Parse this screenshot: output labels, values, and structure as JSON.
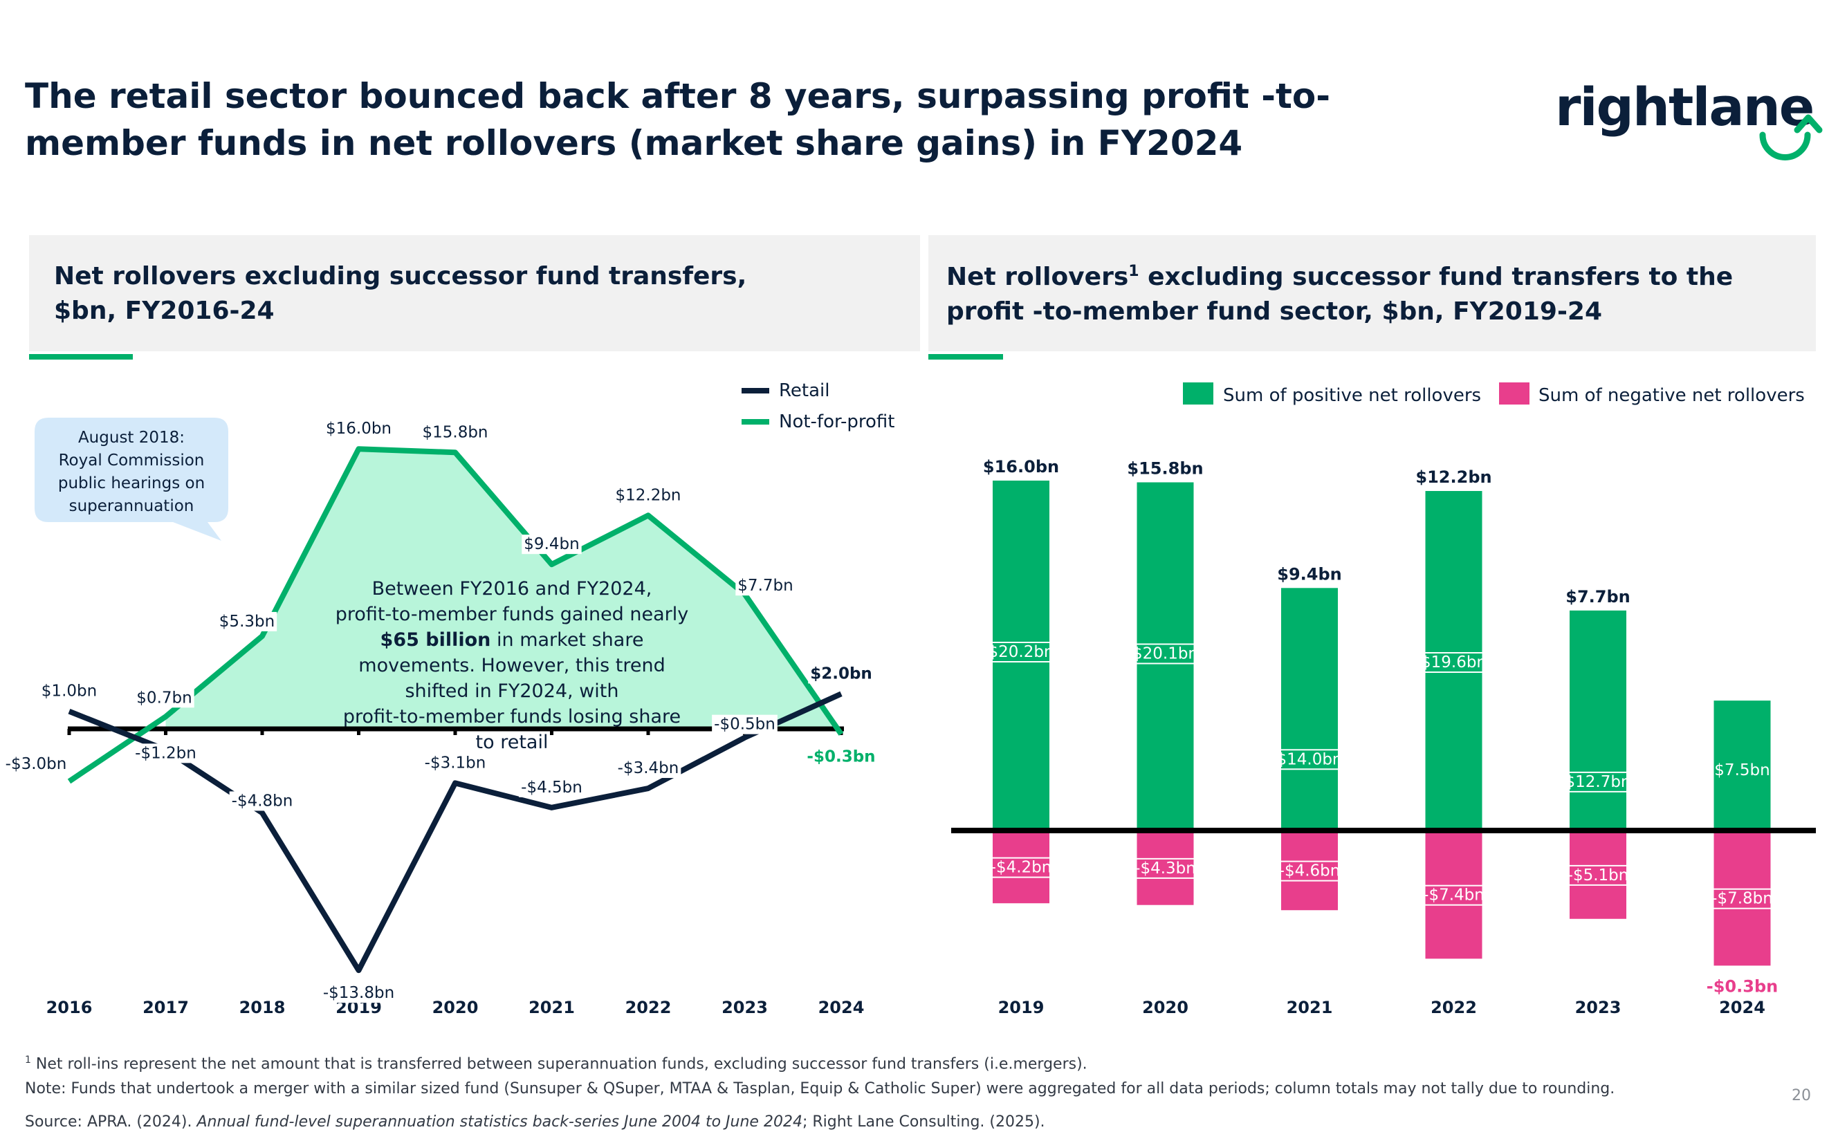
{
  "title": "The retail sector bounced back after 8 years, surpassing profit -to-member funds in net rollovers (market share gains) in FY2024",
  "logo": {
    "text": "rightlane"
  },
  "colors": {
    "retail": "#0b1f3a",
    "not_for_profit": "#00b06a",
    "area_fill": "#b8f5da",
    "positive": "#00b06a",
    "negative": "#e83e8c"
  },
  "left_panel": {
    "heading": "Net rollovers excluding successor fund transfers, $bn, FY2016-24",
    "callout": "August 2018:\nRoyal Commission\npublic hearings on\nsuperannuation",
    "annotation_pre": "Between FY2016 and FY2024, profit-to-member funds gained nearly ",
    "annotation_bold": "$65 billion",
    "annotation_post": " in market share movements. However, this trend shifted in FY2024, with profit-to-member funds losing share to retail"
  },
  "right_panel": {
    "heading_pre": "Net rollovers",
    "heading_sup": "1",
    "heading_post": " excluding successor fund transfers to the profit -to-member fund sector, $bn, FY2019-24"
  },
  "chart_data": [
    {
      "type": "line",
      "title": "Net rollovers excluding successor fund transfers, $bn, FY2016-24",
      "categories": [
        "2016",
        "2017",
        "2018",
        "2019",
        "2020",
        "2021",
        "2022",
        "2023",
        "2024"
      ],
      "series": [
        {
          "name": "Retail",
          "values": [
            1.0,
            -1.2,
            -4.8,
            -13.8,
            -3.1,
            -4.5,
            -3.4,
            -0.5,
            2.0
          ],
          "labels": [
            "$1.0bn",
            "-$1.2bn",
            "-$4.8bn",
            "-$13.8bn",
            "-$3.1bn",
            "-$4.5bn",
            "-$3.4bn",
            "-$0.5bn",
            "$2.0bn"
          ]
        },
        {
          "name": "Not-for-profit",
          "values": [
            -3.0,
            0.7,
            5.3,
            16.0,
            15.8,
            9.4,
            12.2,
            7.7,
            -0.3
          ],
          "labels": [
            "-$3.0bn",
            "$0.7bn",
            "$5.3bn",
            "$16.0bn",
            "$15.8bn",
            "$9.4bn",
            "$12.2bn",
            "$7.7bn",
            "-$0.3bn"
          ]
        }
      ],
      "ylim": [
        -14.5,
        17.5
      ],
      "legend": "top-right"
    },
    {
      "type": "bar",
      "title": "Net rollovers excluding successor fund transfers to the profit-to-member fund sector, $bn, FY2019-24",
      "categories": [
        "2019",
        "2020",
        "2021",
        "2022",
        "2023",
        "2024"
      ],
      "series": [
        {
          "name": "Sum of positive net rollovers",
          "values": [
            20.2,
            20.1,
            14.0,
            19.6,
            12.7,
            7.5
          ],
          "labels": [
            "$20.2bn",
            "$20.1bn",
            "$14.0bn",
            "$19.6bn",
            "$12.7bn",
            "$7.5bn"
          ]
        },
        {
          "name": "Sum of negative net rollovers",
          "values": [
            -4.2,
            -4.3,
            -4.6,
            -7.4,
            -5.1,
            -7.8
          ],
          "labels": [
            "-$4.2bn",
            "-$4.3bn",
            "-$4.6bn",
            "-$7.4bn",
            "-$5.1bn",
            "-$7.8bn"
          ]
        }
      ],
      "totals": [
        "$16.0bn",
        "$15.8bn",
        "$9.4bn",
        "$12.2bn",
        "$7.7bn",
        "-$0.3bn"
      ],
      "ylim": [
        -8.5,
        22.5
      ],
      "legend": "top"
    }
  ],
  "footnotes": {
    "line1_sup": "1",
    "line1": " Net roll-ins represent the net amount that is transferred between superannuation funds, excluding successor fund transfers (i.e.mergers).",
    "line2": "Note: Funds that undertook a merger with a similar sized fund (Sunsuper & QSuper, MTAA & Tasplan, Equip & Catholic Super) were aggregated for all data periods; column totals may not tally due to rounding.",
    "line3_pre": "Source: APRA. (2024). ",
    "line3_italic": "Annual fund-level superannuation statistics back-series June 2004 to June 2024",
    "line3_post": "; Right Lane Consulting. (2025)."
  },
  "page_number": "20"
}
